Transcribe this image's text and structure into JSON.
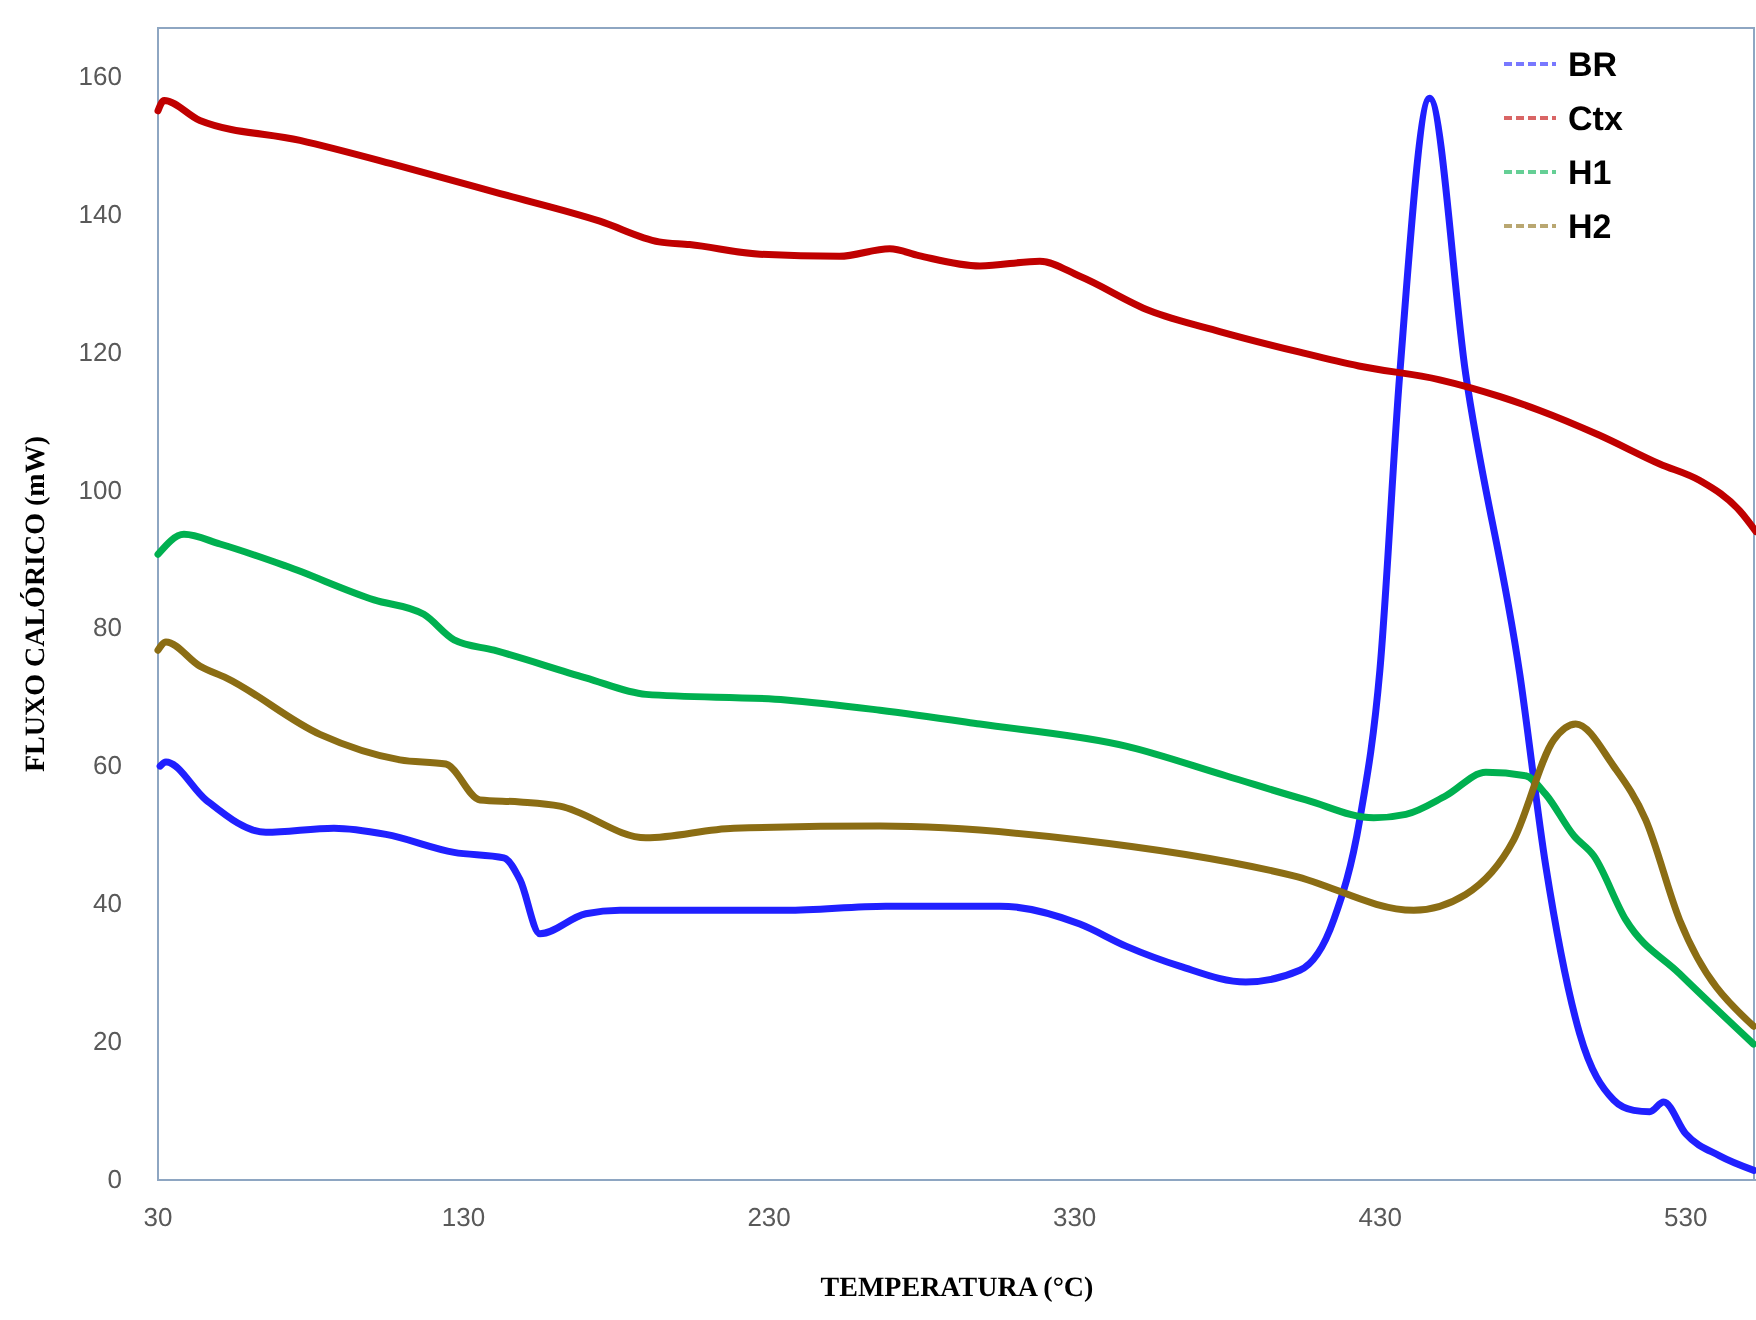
{
  "chart_data": {
    "type": "line",
    "xlabel": "TEMPERATURA (°C)",
    "ylabel": "FLUXO CALÓRICO (mW)",
    "xlim": [
      30,
      553
    ],
    "xticks": [
      30,
      130,
      230,
      330,
      430,
      530
    ],
    "ylim": [
      0,
      167
    ],
    "yticks": [
      0,
      20,
      40,
      60,
      80,
      100,
      120,
      140,
      160
    ],
    "grid": false,
    "legend": "top right",
    "line_style": "solid",
    "marker": "none",
    "series": [
      {
        "name": "BR",
        "color": "#2020ff",
        "x": [
          30.7,
          32.6,
          45.7,
          65.3,
          87.6,
          104.6,
          126.9,
          143.2,
          148.5,
          155,
          170,
          181.2,
          235.5,
          268.2,
          292.4,
          305.5,
          331.7,
          346.8,
          364.4,
          386,
          403.7,
          414.8,
          423.3,
          429.9,
          436.4,
          446.2,
          458,
          475.7,
          484.2,
          495.3,
          506.4,
          513,
          518.2,
          522.8,
          530,
          541.1,
          552.3
        ],
        "values": [
          60,
          60.6,
          55.1,
          50.4,
          51,
          50.1,
          47.5,
          46.7,
          43.5,
          35.7,
          38.6,
          39.1,
          39.1,
          39.7,
          39.7,
          39.7,
          37.1,
          33.9,
          31,
          28.7,
          30.4,
          37.7,
          52.2,
          73.9,
          116.8,
          156.8,
          116.8,
          73.3,
          45.5,
          21.2,
          11.6,
          10.1,
          9.9,
          11.3,
          6.7,
          3.5,
          1.4
        ]
      },
      {
        "name": "Ctx",
        "color": "#c00000",
        "x": [
          30,
          32,
          43.7,
          76.5,
          109,
          142,
          174.6,
          194,
          204,
          227,
          253,
          269.5,
          279,
          299,
          318.6,
          331.7,
          354.6,
          377.5,
          403.7,
          423,
          449.5,
          469,
          482,
          501.6,
          521.5,
          534.6,
          547.7,
          553
        ],
        "values": [
          155,
          156.5,
          153.6,
          150.7,
          147,
          143,
          139,
          136,
          135.6,
          134.2,
          133.9,
          135,
          134,
          132.5,
          133.2,
          131,
          126,
          123,
          120,
          118,
          116,
          113.6,
          111.6,
          108,
          103.8,
          101.4,
          97,
          94
        ]
      },
      {
        "name": "H1",
        "color": "#00b050",
        "x": [
          30,
          38.5,
          50.3,
          71.9,
          100.7,
          117,
          126.9,
          140,
          170,
          189.7,
          235.5,
          266.3,
          299,
          346.8,
          379.5,
          405.7,
          427.9,
          438.4,
          451.5,
          464.6,
          477.6,
          484.2,
          493.4,
          499.9,
          510.4,
          528,
          552.2
        ],
        "values": [
          90.7,
          93.6,
          92.2,
          89,
          84.1,
          82,
          78.3,
          76.8,
          72.8,
          70.4,
          69.6,
          68.1,
          66.1,
          62.9,
          58.6,
          55.1,
          52.5,
          53,
          55.7,
          59.1,
          58.6,
          55.9,
          49.9,
          47,
          37.7,
          29.9,
          19.7
        ]
      },
      {
        "name": "H2",
        "color": "#8b6d14",
        "x": [
          30,
          32.6,
          43.7,
          52.3,
          83,
          109.2,
          124.2,
          135.4,
          148.5,
          161.5,
          189.7,
          218.5,
          266.3,
          331.7,
          401.7,
          441,
          458,
          473.7,
          486.8,
          494,
          506.4,
          516.9,
          528,
          552.2
        ],
        "values": [
          76.8,
          78,
          74.5,
          72.8,
          64.6,
          60.9,
          60.3,
          55.1,
          54.8,
          54.2,
          49.6,
          51,
          51.3,
          49.3,
          44.1,
          39.1,
          41.4,
          49.3,
          63.8,
          66.1,
          60,
          52.2,
          37.7,
          22.3
        ]
      }
    ]
  }
}
